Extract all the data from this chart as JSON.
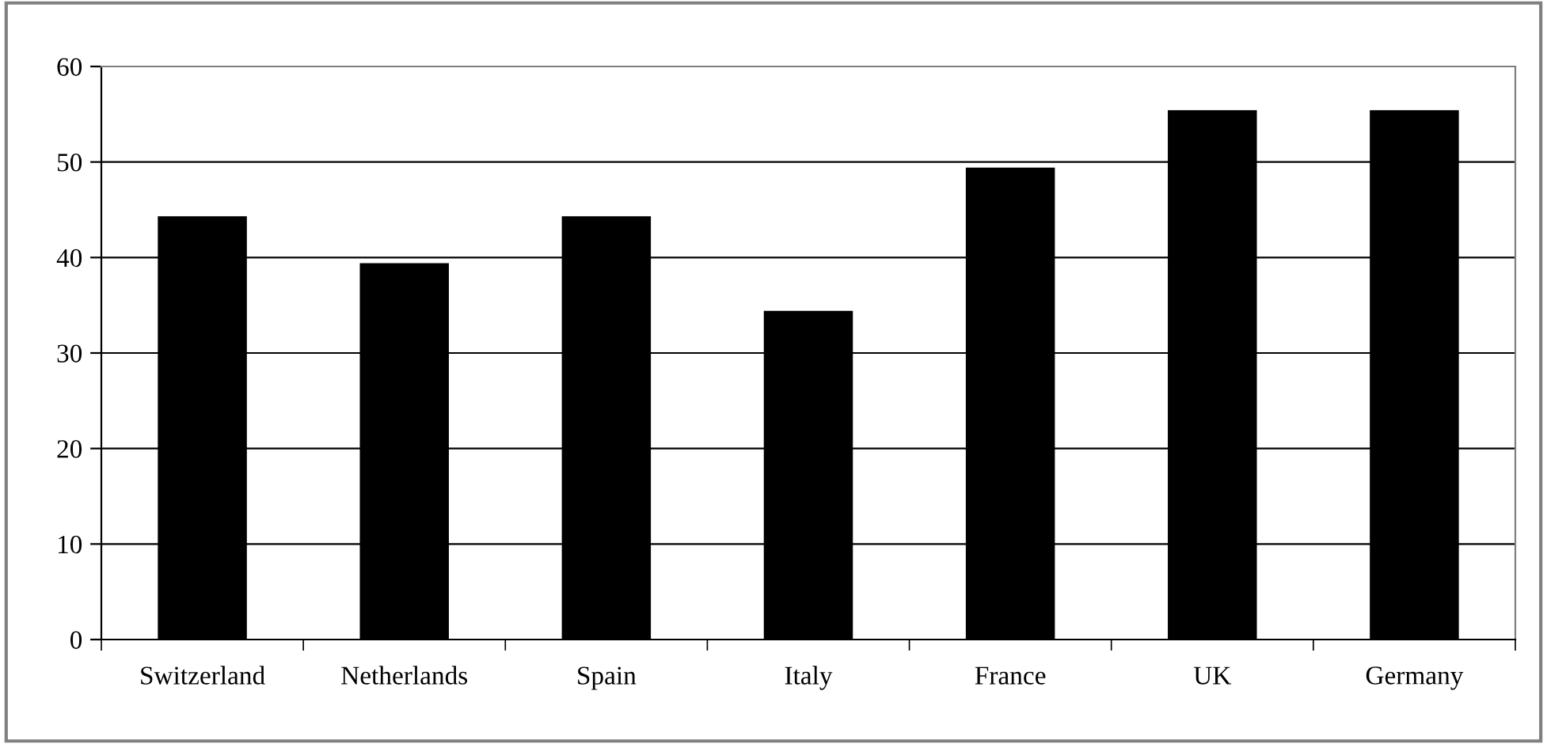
{
  "chart_data": {
    "type": "bar",
    "categories": [
      "Switzerland",
      "Netherlands",
      "Spain",
      "Italy",
      "France",
      "UK",
      "Germany"
    ],
    "values": [
      44.2,
      39.3,
      44.2,
      34.3,
      49.3,
      55.3,
      55.3
    ],
    "color": "#000000",
    "ylim": [
      0,
      60
    ],
    "yticks": [
      0,
      10,
      20,
      30,
      40,
      50,
      60
    ],
    "grid": "y"
  }
}
